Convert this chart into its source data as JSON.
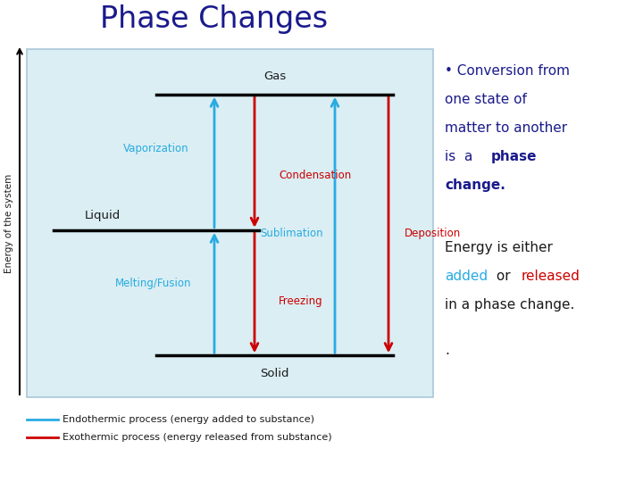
{
  "title": "Phase Changes",
  "title_color": "#1a1a8c",
  "title_fontsize": 24,
  "box_bg": "#daeef3",
  "box_edge": "#aac8d8",
  "arrow_cyan": "#29abe2",
  "arrow_red": "#cc0000",
  "text_dark": "#1a1a1a",
  "text_navy": "#1a1a8c",
  "legend_endothermic": "Endothermic process (energy added to substance)",
  "legend_exothermic": "Exothermic process (energy released from substance)"
}
